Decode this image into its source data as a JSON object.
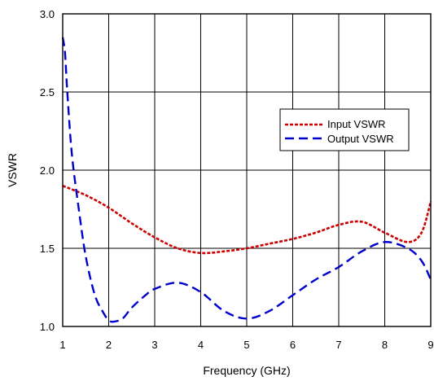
{
  "chart_data": {
    "type": "line",
    "xlabel": "Frequency (GHz)",
    "ylabel": "VSWR",
    "xlim": [
      1,
      9
    ],
    "ylim": [
      1.0,
      3.0
    ],
    "xticks": [
      1,
      2,
      3,
      4,
      5,
      6,
      7,
      8,
      9
    ],
    "yticks": [
      1.0,
      1.5,
      2.0,
      2.5,
      3.0
    ],
    "xtick_labels": [
      "1",
      "2",
      "3",
      "4",
      "5",
      "6",
      "7",
      "8",
      "9"
    ],
    "ytick_labels": [
      "1.0",
      "1.5",
      "2.0",
      "2.5",
      "3.0"
    ],
    "grid": true,
    "legend_position": "right-middle",
    "series": [
      {
        "name": "Input VSWR",
        "color": "#cc0000",
        "line_style": "dotted",
        "x": [
          1.0,
          1.5,
          2.0,
          2.5,
          3.0,
          3.5,
          4.0,
          4.5,
          5.0,
          5.5,
          6.0,
          6.5,
          7.0,
          7.5,
          8.0,
          8.5,
          8.8,
          9.0
        ],
        "y": [
          1.9,
          1.84,
          1.76,
          1.66,
          1.57,
          1.5,
          1.47,
          1.48,
          1.5,
          1.53,
          1.56,
          1.6,
          1.65,
          1.67,
          1.6,
          1.54,
          1.6,
          1.8
        ]
      },
      {
        "name": "Output VSWR",
        "color": "#0000cc",
        "line_style": "dashed",
        "x": [
          1.0,
          1.05,
          1.1,
          1.2,
          1.35,
          1.5,
          1.7,
          1.9,
          2.0,
          2.1,
          2.3,
          2.5,
          2.8,
          3.0,
          3.5,
          4.0,
          4.5,
          5.0,
          5.5,
          6.0,
          6.5,
          7.0,
          7.5,
          8.0,
          8.5,
          8.8,
          9.0
        ],
        "y": [
          2.85,
          2.75,
          2.5,
          2.1,
          1.75,
          1.45,
          1.2,
          1.08,
          1.04,
          1.03,
          1.05,
          1.12,
          1.2,
          1.24,
          1.28,
          1.22,
          1.1,
          1.05,
          1.1,
          1.2,
          1.3,
          1.38,
          1.48,
          1.54,
          1.5,
          1.42,
          1.3
        ]
      }
    ]
  }
}
